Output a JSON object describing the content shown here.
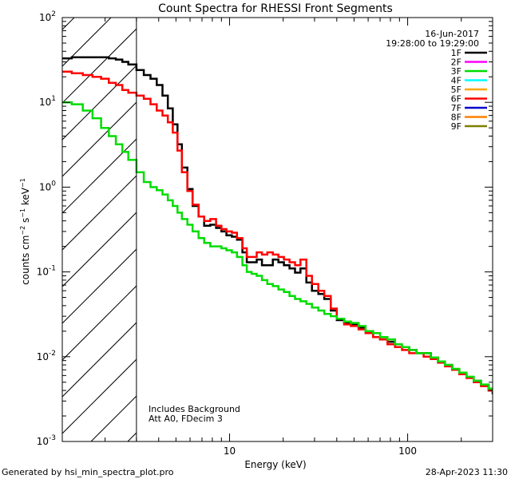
{
  "chart_data": {
    "type": "line",
    "title": "Count Spectra for RHESSI Front Segments",
    "xlabel": "Energy (keV)",
    "ylabel": "counts cm^-2 s^-1 keV^-1",
    "xscale": "log",
    "yscale": "log",
    "xlim": [
      1.15,
      300
    ],
    "ylim": [
      0.001,
      100
    ],
    "x_ticks": [
      {
        "value": 10,
        "label": "10"
      },
      {
        "value": 100,
        "label": "100"
      }
    ],
    "y_ticks": [
      {
        "value": 0.001,
        "base": "10",
        "exp": "-3"
      },
      {
        "value": 0.01,
        "base": "10",
        "exp": "-2"
      },
      {
        "value": 0.1,
        "base": "10",
        "exp": "-1"
      },
      {
        "value": 1,
        "base": "10",
        "exp": "0"
      },
      {
        "value": 10,
        "base": "10",
        "exp": "1"
      },
      {
        "value": 100,
        "base": "10",
        "exp": "2"
      }
    ],
    "shaded_region": {
      "x_from": 1.15,
      "x_to": 3,
      "pattern": "hatched"
    },
    "date": "16-Jun-2017",
    "time_range": "19:28:00 to 19:29:00",
    "annotations": [
      "Includes Background",
      "Att A0, FDecim 3"
    ],
    "legend": [
      {
        "name": "1F",
        "color": "#000000"
      },
      {
        "name": "2F",
        "color": "#ff00ff"
      },
      {
        "name": "3F",
        "color": "#00dd00"
      },
      {
        "name": "4F",
        "color": "#00ffff"
      },
      {
        "name": "5F",
        "color": "#ffa500"
      },
      {
        "name": "6F",
        "color": "#ff0000"
      },
      {
        "name": "7F",
        "color": "#0000cc"
      },
      {
        "name": "8F",
        "color": "#ff7f00"
      },
      {
        "name": "9F",
        "color": "#7f7f00"
      }
    ],
    "series": [
      {
        "name": "1F",
        "color": "#000000",
        "x": [
          1.15,
          1.3,
          1.5,
          1.7,
          1.9,
          2.1,
          2.3,
          2.5,
          2.7,
          3.0,
          3.3,
          3.6,
          3.9,
          4.2,
          4.5,
          4.8,
          5.1,
          5.4,
          5.8,
          6.2,
          6.7,
          7.2,
          7.8,
          8.4,
          9.0,
          9.6,
          10.3,
          11.0,
          11.8,
          12.5,
          13.3,
          14.2,
          15.2,
          16.3,
          17.5,
          18.8,
          20.2,
          21.7,
          23.3,
          25.0,
          27.0,
          29.0,
          31.5,
          34.0,
          37.0,
          40.0,
          44.0,
          48.0,
          53.0,
          58.0,
          64.0,
          70.0,
          77.0,
          85.0,
          93.0,
          102,
          112,
          123,
          135,
          148,
          162,
          178,
          195,
          214,
          235,
          258,
          285,
          300
        ],
        "y": [
          33,
          34,
          34,
          34,
          34,
          33,
          32,
          30,
          28,
          24,
          21,
          19,
          16,
          12,
          8.5,
          5.5,
          3.2,
          1.7,
          0.95,
          0.6,
          0.45,
          0.35,
          0.36,
          0.33,
          0.3,
          0.27,
          0.26,
          0.24,
          0.17,
          0.13,
          0.13,
          0.14,
          0.12,
          0.12,
          0.14,
          0.13,
          0.12,
          0.11,
          0.098,
          0.11,
          0.075,
          0.06,
          0.055,
          0.048,
          0.035,
          0.027,
          0.025,
          0.024,
          0.022,
          0.02,
          0.017,
          0.016,
          0.015,
          0.013,
          0.013,
          0.012,
          0.011,
          0.011,
          0.0095,
          0.0085,
          0.008,
          0.007,
          0.0063,
          0.0057,
          0.0052,
          0.0046,
          0.004,
          0.0036
        ]
      },
      {
        "name": "6F",
        "color": "#ff0000",
        "x": [
          1.15,
          1.3,
          1.5,
          1.7,
          1.9,
          2.1,
          2.3,
          2.5,
          2.7,
          3.0,
          3.3,
          3.6,
          3.9,
          4.2,
          4.5,
          4.8,
          5.1,
          5.4,
          5.8,
          6.2,
          6.7,
          7.2,
          7.8,
          8.4,
          9.0,
          9.6,
          10.3,
          11.0,
          11.8,
          12.5,
          13.3,
          14.2,
          15.2,
          16.3,
          17.5,
          18.8,
          20.2,
          21.7,
          23.3,
          25.0,
          27.0,
          29.0,
          31.5,
          34.0,
          37.0,
          40.0,
          44.0,
          48.0,
          53.0,
          58.0,
          64.0,
          70.0,
          77.0,
          85.0,
          93.0,
          102,
          112,
          123,
          135,
          148,
          162,
          178,
          195,
          214,
          235,
          258,
          285,
          300
        ],
        "y": [
          23,
          22,
          21,
          20,
          19,
          17,
          16,
          14,
          13,
          12,
          11,
          9.5,
          8,
          7,
          5.8,
          4.4,
          2.7,
          1.5,
          0.9,
          0.62,
          0.45,
          0.4,
          0.42,
          0.35,
          0.32,
          0.3,
          0.29,
          0.25,
          0.19,
          0.15,
          0.15,
          0.17,
          0.16,
          0.17,
          0.16,
          0.15,
          0.14,
          0.13,
          0.12,
          0.14,
          0.09,
          0.072,
          0.06,
          0.052,
          0.037,
          0.028,
          0.024,
          0.023,
          0.021,
          0.019,
          0.017,
          0.016,
          0.014,
          0.013,
          0.012,
          0.011,
          0.011,
          0.01,
          0.0094,
          0.0085,
          0.0077,
          0.007,
          0.0062,
          0.0056,
          0.005,
          0.0045,
          0.004,
          0.0038
        ]
      },
      {
        "name": "3F",
        "color": "#00dd00",
        "x": [
          1.15,
          1.3,
          1.5,
          1.7,
          1.9,
          2.1,
          2.3,
          2.5,
          2.7,
          3.0,
          3.3,
          3.6,
          3.9,
          4.2,
          4.5,
          4.8,
          5.1,
          5.4,
          5.8,
          6.2,
          6.7,
          7.2,
          7.8,
          8.4,
          9.0,
          9.6,
          10.3,
          11.0,
          11.8,
          12.5,
          13.3,
          14.2,
          15.2,
          16.3,
          17.5,
          18.8,
          20.2,
          21.7,
          23.3,
          25.0,
          27.0,
          29.0,
          31.5,
          34.0,
          37.0,
          40.0,
          44.0,
          48.0,
          53.0,
          58.0,
          64.0,
          70.0,
          77.0,
          85.0,
          93.0,
          102,
          112,
          123,
          135,
          148,
          162,
          178,
          195,
          214,
          235,
          258,
          285,
          300
        ],
        "y": [
          10,
          9.5,
          8,
          6.5,
          5,
          4,
          3.2,
          2.6,
          2.1,
          1.5,
          1.15,
          1.0,
          0.92,
          0.82,
          0.7,
          0.6,
          0.5,
          0.42,
          0.36,
          0.3,
          0.25,
          0.22,
          0.2,
          0.2,
          0.19,
          0.18,
          0.17,
          0.15,
          0.12,
          0.1,
          0.095,
          0.09,
          0.08,
          0.072,
          0.068,
          0.062,
          0.058,
          0.052,
          0.048,
          0.045,
          0.042,
          0.038,
          0.035,
          0.032,
          0.03,
          0.028,
          0.026,
          0.025,
          0.023,
          0.02,
          0.019,
          0.017,
          0.016,
          0.014,
          0.013,
          0.012,
          0.011,
          0.011,
          0.0098,
          0.0088,
          0.008,
          0.0072,
          0.0065,
          0.0058,
          0.0052,
          0.0047,
          0.0042,
          0.0039
        ]
      }
    ]
  },
  "footer": {
    "generated_by": "Generated by hsi_min_spectra_plot.pro",
    "timestamp": "28-Apr-2023 11:30"
  }
}
